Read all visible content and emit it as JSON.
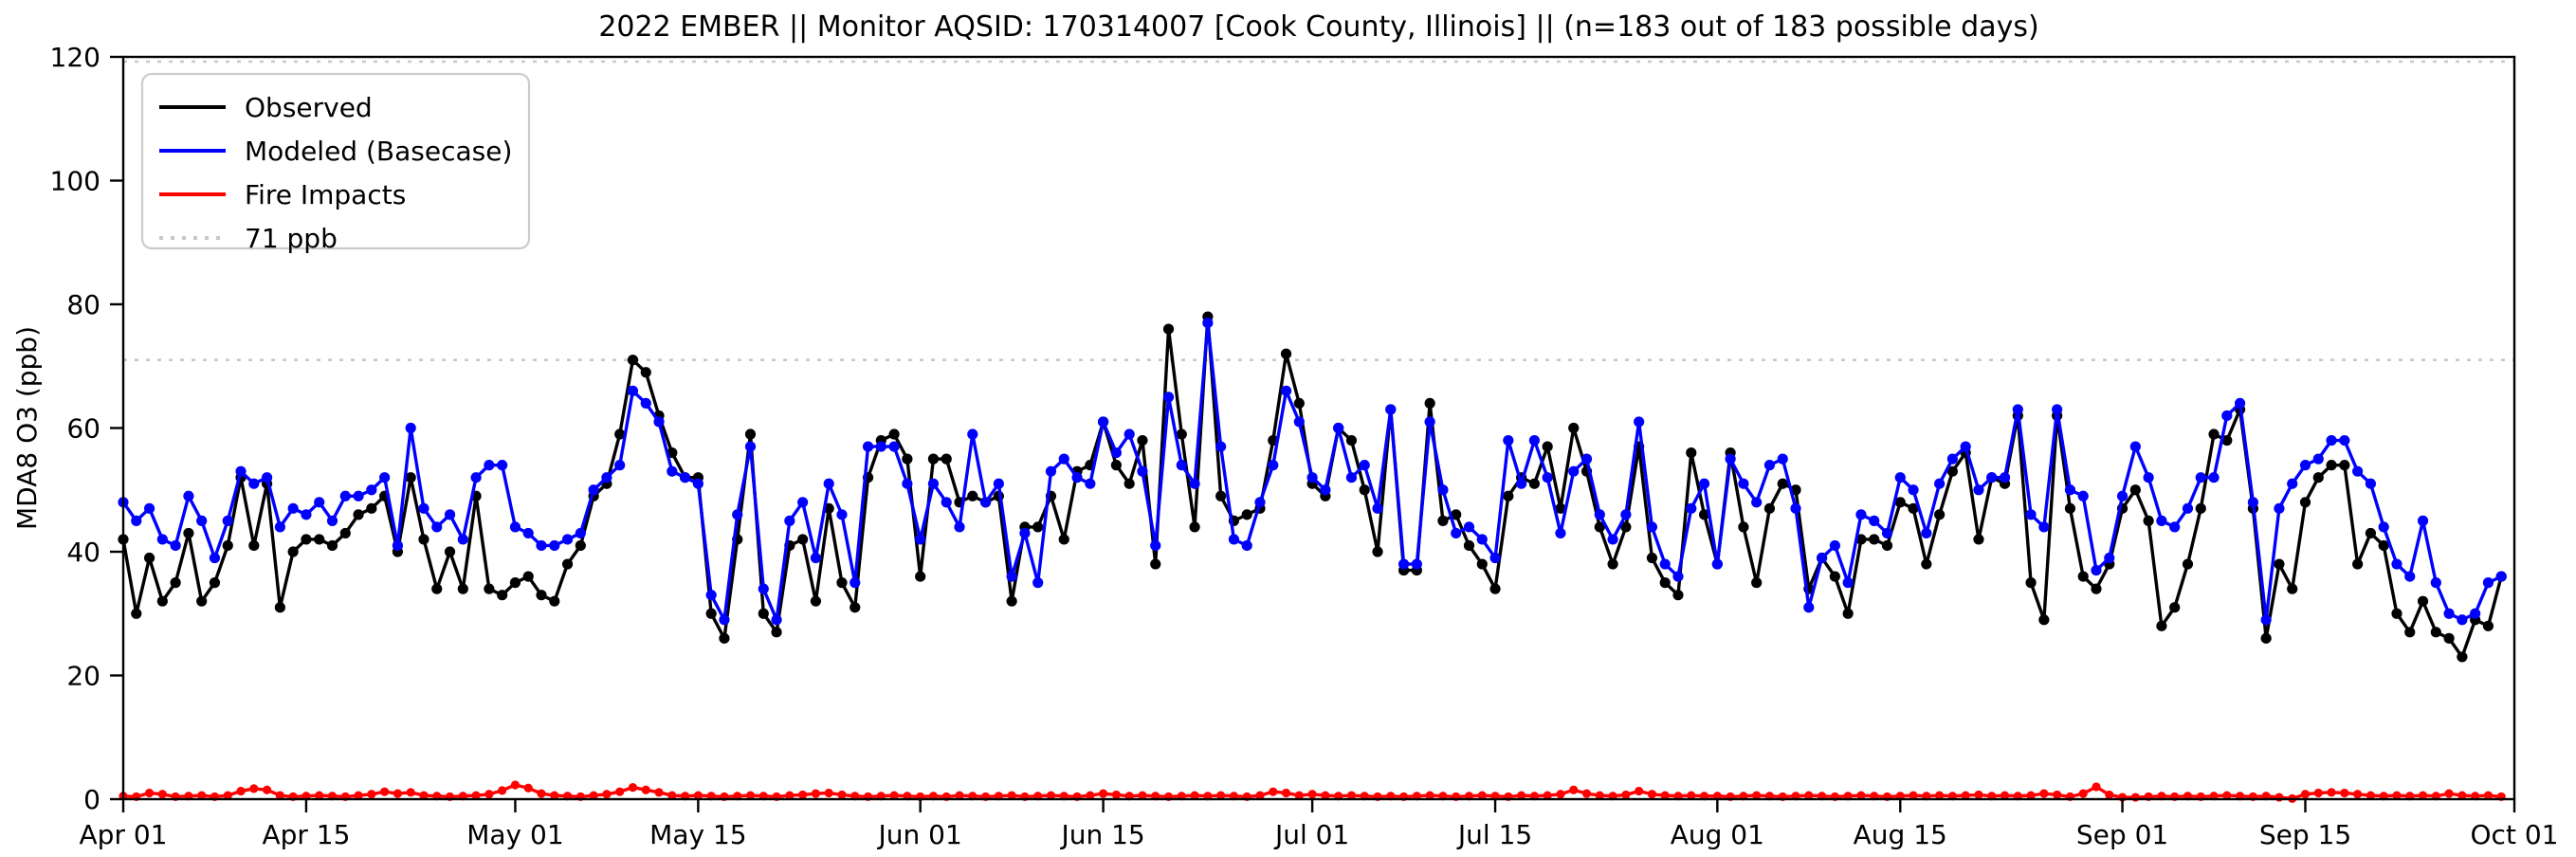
{
  "page": {
    "title": "2022 EMBER || Monitor AQSID: 170314007 [Cook County, Illinois] || (n=183 out of 183 possible days)"
  },
  "chart_data": {
    "type": "line",
    "title": "2022 EMBER || Monitor AQSID: 170314007 [Cook County, Illinois] || (n=183 out of 183 possible days)",
    "xlabel": "",
    "ylabel": "MDA8 O3 (ppb)",
    "ylim": [
      0,
      120
    ],
    "yticks": [
      0,
      20,
      40,
      60,
      80,
      100,
      120
    ],
    "n_days": 183,
    "x_start_date": "Apr 01",
    "x_end_date": "Oct 01",
    "x_tick_labels": [
      "Apr 01",
      "Apr 15",
      "May 01",
      "May 15",
      "Jun 01",
      "Jun 15",
      "Jul 01",
      "Jul 15",
      "Aug 01",
      "Aug 15",
      "Sep 01",
      "Sep 15",
      "Oct 01"
    ],
    "x_tick_day_index": [
      0,
      14,
      30,
      44,
      61,
      75,
      91,
      105,
      122,
      136,
      153,
      167,
      183
    ],
    "grid": false,
    "legend_position": "upper-left",
    "reference_lines": [
      {
        "label": "71 ppb",
        "value": 71,
        "style": "dotted",
        "color": "#c8c8c8"
      },
      {
        "label": "",
        "value": 120,
        "style": "dotted",
        "color": "#c8c8c8"
      }
    ],
    "legend": [
      {
        "label": "Observed",
        "color": "#000000",
        "style": "solid"
      },
      {
        "label": "Modeled (Basecase)",
        "color": "#0000ff",
        "style": "solid"
      },
      {
        "label": "Fire Impacts",
        "color": "#ff0000",
        "style": "solid"
      },
      {
        "label": "71 ppb",
        "color": "#c8c8c8",
        "style": "dotted"
      }
    ],
    "series": [
      {
        "name": "Observed",
        "color": "#000000",
        "values": [
          42,
          30,
          39,
          32,
          35,
          43,
          32,
          35,
          41,
          52,
          41,
          51,
          31,
          40,
          42,
          42,
          41,
          43,
          46,
          47,
          49,
          40,
          52,
          42,
          34,
          40,
          34,
          49,
          34,
          33,
          35,
          36,
          33,
          32,
          38,
          41,
          49,
          51,
          59,
          71,
          69,
          62,
          56,
          52,
          52,
          30,
          26,
          42,
          59,
          30,
          27,
          41,
          42,
          32,
          47,
          35,
          31,
          52,
          58,
          59,
          55,
          36,
          55,
          55,
          48,
          49,
          48,
          49,
          32,
          44,
          44,
          49,
          42,
          53,
          54,
          61,
          54,
          51,
          58,
          38,
          76,
          59,
          44,
          78,
          49,
          45,
          46,
          47,
          58,
          72,
          64,
          51,
          49,
          60,
          58,
          50,
          40,
          63,
          37,
          37,
          64,
          45,
          46,
          41,
          38,
          34,
          49,
          52,
          51,
          57,
          47,
          60,
          53,
          44,
          38,
          44,
          57,
          39,
          35,
          33,
          56,
          46,
          38,
          56,
          44,
          35,
          47,
          51,
          50,
          34,
          39,
          36,
          30,
          42,
          42,
          41,
          48,
          47,
          38,
          46,
          53,
          56,
          42,
          52,
          51,
          62,
          35,
          29,
          62,
          47,
          36,
          34,
          38,
          47,
          50,
          45,
          28,
          31,
          38,
          47,
          59,
          58,
          63,
          47,
          26,
          38,
          34,
          48,
          52,
          54,
          54,
          38,
          43,
          41,
          30,
          27,
          32,
          27,
          26,
          23,
          29,
          28,
          36
        ]
      },
      {
        "name": "Modeled (Basecase)",
        "color": "#0000ff",
        "values": [
          48,
          45,
          47,
          42,
          41,
          49,
          45,
          39,
          45,
          53,
          51,
          52,
          44,
          47,
          46,
          48,
          45,
          49,
          49,
          50,
          52,
          41,
          60,
          47,
          44,
          46,
          42,
          52,
          54,
          54,
          44,
          43,
          41,
          41,
          42,
          43,
          50,
          52,
          54,
          66,
          64,
          61,
          53,
          52,
          51,
          33,
          29,
          46,
          57,
          34,
          29,
          45,
          48,
          39,
          51,
          46,
          35,
          57,
          57,
          57,
          51,
          42,
          51,
          48,
          44,
          59,
          48,
          51,
          36,
          43,
          35,
          53,
          55,
          52,
          51,
          61,
          56,
          59,
          53,
          41,
          65,
          54,
          51,
          77,
          57,
          42,
          41,
          48,
          54,
          66,
          61,
          52,
          50,
          60,
          52,
          54,
          47,
          63,
          38,
          38,
          61,
          50,
          43,
          44,
          42,
          39,
          58,
          51,
          58,
          52,
          43,
          53,
          55,
          46,
          42,
          46,
          61,
          44,
          38,
          36,
          47,
          51,
          38,
          55,
          51,
          48,
          54,
          55,
          47,
          31,
          39,
          41,
          35,
          46,
          45,
          43,
          52,
          50,
          43,
          51,
          55,
          57,
          50,
          52,
          52,
          63,
          46,
          44,
          63,
          50,
          49,
          37,
          39,
          49,
          57,
          52,
          45,
          44,
          47,
          52,
          52,
          62,
          64,
          48,
          29,
          47,
          51,
          54,
          55,
          58,
          58,
          53,
          51,
          44,
          38,
          36,
          45,
          35,
          30,
          29,
          30,
          35,
          36
        ]
      },
      {
        "name": "Fire Impacts",
        "color": "#ff0000",
        "values": [
          0.5,
          0.4,
          1.0,
          0.8,
          0.4,
          0.5,
          0.6,
          0.4,
          0.6,
          1.3,
          1.7,
          1.5,
          0.6,
          0.4,
          0.5,
          0.6,
          0.5,
          0.4,
          0.6,
          0.8,
          1.2,
          0.9,
          1.1,
          0.6,
          0.5,
          0.4,
          0.5,
          0.6,
          0.8,
          1.4,
          2.3,
          1.8,
          0.9,
          0.6,
          0.5,
          0.4,
          0.6,
          0.8,
          1.2,
          1.9,
          1.5,
          1.1,
          0.6,
          0.5,
          0.6,
          0.5,
          0.4,
          0.5,
          0.6,
          0.5,
          0.4,
          0.6,
          0.7,
          0.9,
          1.0,
          0.7,
          0.5,
          0.4,
          0.5,
          0.6,
          0.5,
          0.4,
          0.5,
          0.4,
          0.6,
          0.5,
          0.4,
          0.5,
          0.6,
          0.4,
          0.5,
          0.6,
          0.5,
          0.4,
          0.6,
          0.9,
          0.7,
          0.5,
          0.6,
          0.5,
          0.4,
          0.5,
          0.6,
          0.5,
          0.6,
          0.5,
          0.4,
          0.6,
          1.2,
          1.0,
          0.6,
          0.8,
          0.6,
          0.5,
          0.6,
          0.5,
          0.4,
          0.5,
          0.4,
          0.5,
          0.6,
          0.5,
          0.4,
          0.5,
          0.6,
          0.5,
          0.4,
          0.6,
          0.5,
          0.6,
          0.8,
          1.5,
          0.9,
          0.6,
          0.5,
          0.7,
          1.3,
          0.8,
          0.6,
          0.5,
          0.6,
          0.5,
          0.5,
          0.4,
          0.5,
          0.6,
          0.5,
          0.4,
          0.5,
          0.6,
          0.5,
          0.4,
          0.5,
          0.6,
          0.5,
          0.4,
          0.5,
          0.6,
          0.5,
          0.6,
          0.5,
          0.6,
          0.7,
          0.5,
          0.6,
          0.5,
          0.6,
          0.9,
          0.7,
          0.4,
          0.9,
          2.0,
          0.7,
          0.3,
          0.3,
          0.4,
          0.5,
          0.4,
          0.5,
          0.4,
          0.5,
          0.6,
          0.5,
          0.4,
          0.5,
          0.3,
          0.1,
          0.8,
          1.0,
          1.1,
          1.0,
          0.8,
          0.6,
          0.5,
          0.6,
          0.5,
          0.6,
          0.5,
          0.9,
          0.6,
          0.5,
          0.6,
          0.4
        ]
      }
    ]
  }
}
